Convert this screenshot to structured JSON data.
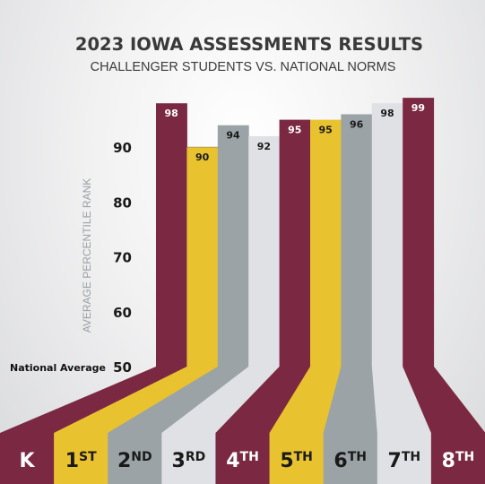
{
  "chart_data": {
    "type": "bar",
    "title": "2023 IOWA ASSESSMENTS RESULTS",
    "subtitle": "CHALLENGER STUDENTS VS. NATIONAL NORMS",
    "ylabel": "AVERAGE PERCENTILE RANK",
    "baseline_label": "National Average",
    "ylim": [
      50,
      100
    ],
    "yticks": [
      50,
      60,
      70,
      80,
      90
    ],
    "grid": true,
    "categories": [
      {
        "main": "K",
        "sup": ""
      },
      {
        "main": "1",
        "sup": "ST"
      },
      {
        "main": "2",
        "sup": "ND"
      },
      {
        "main": "3",
        "sup": "RD"
      },
      {
        "main": "4",
        "sup": "TH"
      },
      {
        "main": "5",
        "sup": "TH"
      },
      {
        "main": "6",
        "sup": "TH"
      },
      {
        "main": "7",
        "sup": "TH"
      },
      {
        "main": "8",
        "sup": "TH"
      }
    ],
    "values": [
      98,
      90,
      94,
      92,
      95,
      95,
      96,
      98,
      99
    ],
    "colors": [
      "#7b2942",
      "#e8c22f",
      "#9ba3a6",
      "#dfe1e4",
      "#7b2942",
      "#e8c22f",
      "#9ba3a6",
      "#dfe1e4",
      "#7b2942"
    ],
    "label_colors": [
      "#ffffff",
      "#1a1a1a",
      "#1a1a1a",
      "#1a1a1a",
      "#ffffff",
      "#1a1a1a",
      "#1a1a1a",
      "#1a1a1a",
      "#ffffff"
    ]
  }
}
